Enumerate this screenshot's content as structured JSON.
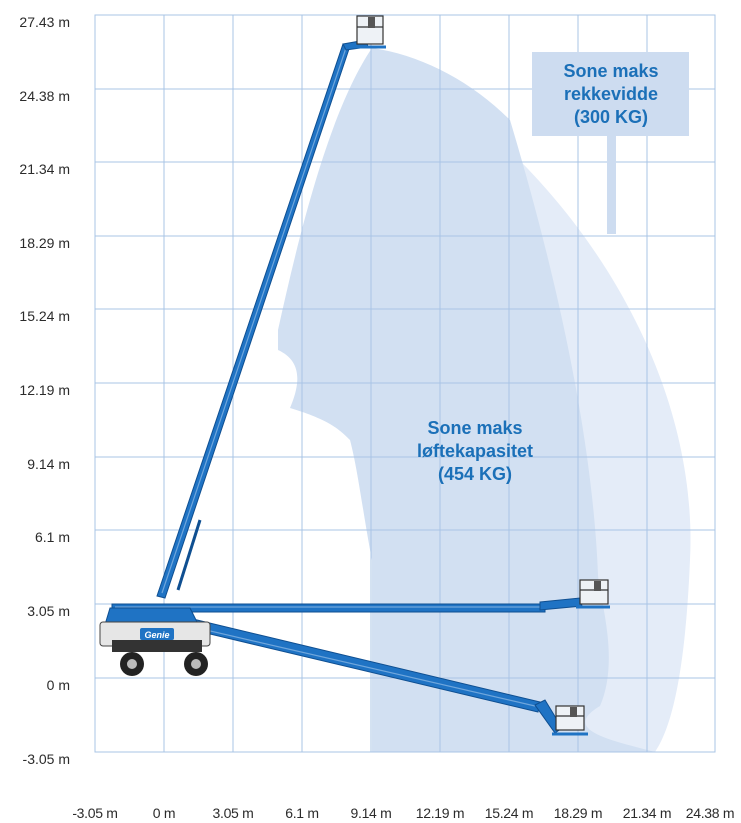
{
  "diagram": {
    "y_axis_labels": [
      "27.43 m",
      "24.38 m",
      "21.34 m",
      "18.29 m",
      "15.24 m",
      "12.19 m",
      "9.14 m",
      "6.1 m",
      "3.05 m",
      "0 m",
      "-3.05 m"
    ],
    "x_axis_labels": [
      "-3.05 m",
      "0 m",
      "3.05 m",
      "6.1 m",
      "9.14 m",
      "12.19 m",
      "15.24 m",
      "18.29 m",
      "21.34 m",
      "24.38 m"
    ],
    "zone_outer": {
      "lines": [
        "Sone maks",
        "rekkevidde",
        "(300 KG)"
      ]
    },
    "zone_inner": {
      "lines": [
        "Sone maks",
        "løftekapasitet",
        "(454 KG)"
      ]
    },
    "machine_brand": "Genie",
    "colors": {
      "grid": "#a9c4e6",
      "zone_outer": "#e4ecf8",
      "zone_inner": "#d2e0f2",
      "boom": "#1f73c4",
      "boom_dark": "#0f4f91",
      "label_box": "#cddcf0",
      "label_text": "#1b70b8"
    }
  }
}
